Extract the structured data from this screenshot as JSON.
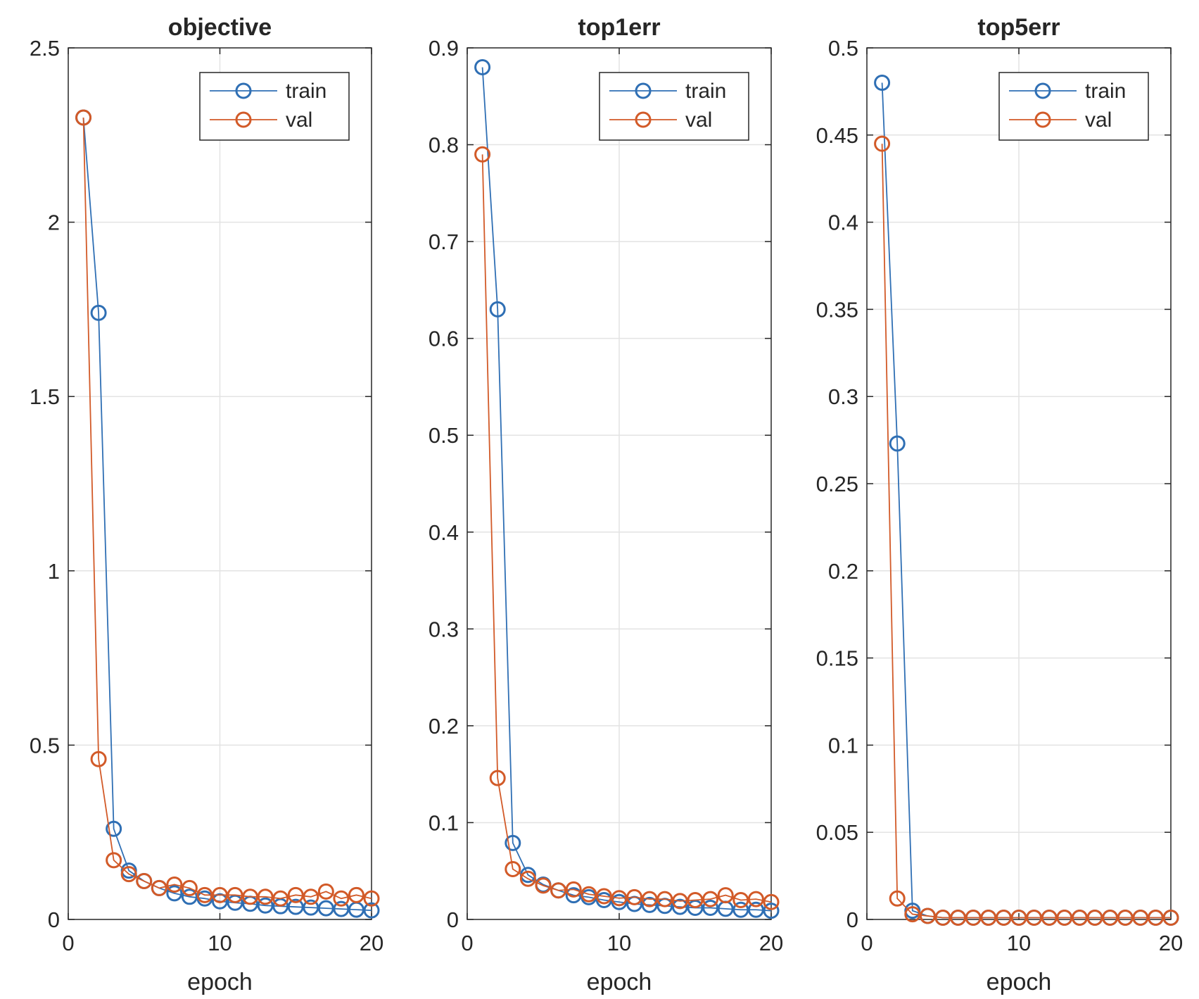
{
  "chart_data": [
    {
      "type": "line",
      "title": "objective",
      "xlabel": "epoch",
      "ylabel": "",
      "xlim": [
        0,
        20
      ],
      "ylim": [
        0,
        2.5
      ],
      "xticks": [
        0,
        10,
        20
      ],
      "yticks": [
        0,
        0.5,
        1,
        1.5,
        2,
        2.5
      ],
      "ytick_labels": [
        "0",
        "0.5",
        "1",
        "1.5",
        "2",
        "2.5"
      ],
      "grid": true,
      "legend_position": "top-right",
      "x": [
        1,
        2,
        3,
        4,
        5,
        6,
        7,
        8,
        9,
        10,
        11,
        12,
        13,
        14,
        15,
        16,
        17,
        18,
        19,
        20
      ],
      "series": [
        {
          "name": "train",
          "color": "#2f6fb4",
          "values": [
            2.3,
            1.74,
            0.26,
            0.14,
            0.11,
            0.09,
            0.075,
            0.065,
            0.06,
            0.052,
            0.048,
            0.045,
            0.04,
            0.038,
            0.036,
            0.034,
            0.032,
            0.03,
            0.028,
            0.026
          ]
        },
        {
          "name": "val",
          "color": "#d25a28",
          "values": [
            2.3,
            0.46,
            0.17,
            0.13,
            0.11,
            0.09,
            0.1,
            0.09,
            0.07,
            0.07,
            0.07,
            0.065,
            0.065,
            0.06,
            0.07,
            0.065,
            0.08,
            0.06,
            0.07,
            0.06
          ]
        }
      ]
    },
    {
      "type": "line",
      "title": "top1err",
      "xlabel": "epoch",
      "ylabel": "",
      "xlim": [
        0,
        20
      ],
      "ylim": [
        0,
        0.9
      ],
      "xticks": [
        0,
        10,
        20
      ],
      "yticks": [
        0,
        0.1,
        0.2,
        0.3,
        0.4,
        0.5,
        0.6,
        0.7,
        0.8,
        0.9
      ],
      "ytick_labels": [
        "0",
        "0.1",
        "0.2",
        "0.3",
        "0.4",
        "0.5",
        "0.6",
        "0.7",
        "0.8",
        "0.9"
      ],
      "grid": true,
      "legend_position": "top-right",
      "x": [
        1,
        2,
        3,
        4,
        5,
        6,
        7,
        8,
        9,
        10,
        11,
        12,
        13,
        14,
        15,
        16,
        17,
        18,
        19,
        20
      ],
      "series": [
        {
          "name": "train",
          "color": "#2f6fb4",
          "values": [
            0.88,
            0.63,
            0.079,
            0.046,
            0.036,
            0.03,
            0.025,
            0.023,
            0.02,
            0.018,
            0.016,
            0.015,
            0.014,
            0.013,
            0.012,
            0.012,
            0.011,
            0.01,
            0.01,
            0.009
          ]
        },
        {
          "name": "val",
          "color": "#d25a28",
          "values": [
            0.79,
            0.146,
            0.052,
            0.042,
            0.035,
            0.03,
            0.031,
            0.026,
            0.024,
            0.022,
            0.023,
            0.021,
            0.021,
            0.019,
            0.02,
            0.021,
            0.025,
            0.02,
            0.021,
            0.018
          ]
        }
      ]
    },
    {
      "type": "line",
      "title": "top5err",
      "xlabel": "epoch",
      "ylabel": "",
      "xlim": [
        0,
        20
      ],
      "ylim": [
        0,
        0.5
      ],
      "xticks": [
        0,
        10,
        20
      ],
      "yticks": [
        0,
        0.05,
        0.1,
        0.15,
        0.2,
        0.25,
        0.3,
        0.35,
        0.4,
        0.45,
        0.5
      ],
      "ytick_labels": [
        "0",
        "0.05",
        "0.1",
        "0.15",
        "0.2",
        "0.25",
        "0.3",
        "0.35",
        "0.4",
        "0.45",
        "0.5"
      ],
      "grid": true,
      "legend_position": "top-right",
      "x": [
        1,
        2,
        3,
        4,
        5,
        6,
        7,
        8,
        9,
        10,
        11,
        12,
        13,
        14,
        15,
        16,
        17,
        18,
        19,
        20
      ],
      "series": [
        {
          "name": "train",
          "color": "#2f6fb4",
          "values": [
            0.48,
            0.273,
            0.005,
            0.002,
            0.001,
            0.001,
            0.001,
            0.001,
            0.001,
            0.001,
            0.001,
            0.001,
            0.001,
            0.001,
            0.001,
            0.001,
            0.001,
            0.001,
            0.001,
            0.001
          ]
        },
        {
          "name": "val",
          "color": "#d25a28",
          "values": [
            0.445,
            0.012,
            0.003,
            0.002,
            0.001,
            0.001,
            0.001,
            0.001,
            0.001,
            0.001,
            0.001,
            0.001,
            0.001,
            0.001,
            0.001,
            0.001,
            0.001,
            0.001,
            0.001,
            0.001
          ]
        }
      ]
    }
  ]
}
